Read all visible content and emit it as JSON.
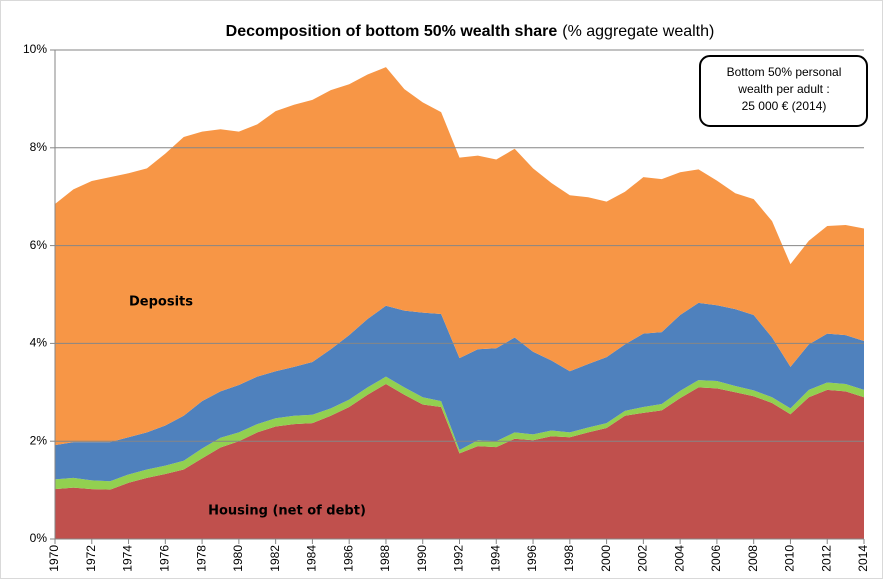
{
  "chart_data": {
    "type": "stacked-area",
    "title": "Decomposition of bottom 50% wealth share",
    "subtitle": "(% aggregate wealth)",
    "annotation": [
      "Bottom 50% personal",
      "wealth per adult :",
      "25 000 € (2014)"
    ],
    "x": [
      1970,
      1971,
      1972,
      1973,
      1974,
      1975,
      1976,
      1977,
      1978,
      1979,
      1980,
      1981,
      1982,
      1983,
      1984,
      1985,
      1986,
      1987,
      1988,
      1989,
      1990,
      1991,
      1992,
      1993,
      1994,
      1995,
      1996,
      1997,
      1998,
      1999,
      2000,
      2001,
      2002,
      2003,
      2004,
      2005,
      2006,
      2007,
      2008,
      2009,
      2010,
      2011,
      2012,
      2013,
      2014
    ],
    "xlim": [
      1970,
      2014
    ],
    "xticks": [
      1970,
      1972,
      1974,
      1976,
      1978,
      1980,
      1982,
      1984,
      1986,
      1988,
      1990,
      1992,
      1994,
      1996,
      1998,
      2000,
      2002,
      2004,
      2006,
      2008,
      2010,
      2012,
      2014
    ],
    "ylim": [
      0,
      10
    ],
    "yticks": [
      {
        "value": 0,
        "label": "0%"
      },
      {
        "value": 2,
        "label": "2%"
      },
      {
        "value": 4,
        "label": "4%"
      },
      {
        "value": 6,
        "label": "6%"
      },
      {
        "value": 8,
        "label": "8%"
      },
      {
        "value": 10,
        "label": "10%"
      }
    ],
    "grid": true,
    "series": [
      {
        "name": "Housing (net of debt)",
        "color": "#c0504d",
        "values": [
          1.02,
          1.05,
          1.02,
          1.01,
          1.15,
          1.25,
          1.33,
          1.42,
          1.65,
          1.87,
          2.0,
          2.18,
          2.3,
          2.35,
          2.37,
          2.52,
          2.7,
          2.95,
          3.17,
          2.95,
          2.75,
          2.7,
          1.75,
          1.9,
          1.88,
          2.05,
          2.02,
          2.1,
          2.08,
          2.18,
          2.27,
          2.52,
          2.58,
          2.63,
          2.88,
          3.1,
          3.08,
          3.0,
          2.92,
          2.78,
          2.55,
          2.9,
          3.05,
          3.02,
          2.9
        ]
      },
      {
        "color": "#92d050",
        "values": [
          0.2,
          0.2,
          0.18,
          0.17,
          0.17,
          0.17,
          0.17,
          0.18,
          0.2,
          0.2,
          0.18,
          0.17,
          0.17,
          0.17,
          0.17,
          0.15,
          0.15,
          0.15,
          0.15,
          0.15,
          0.15,
          0.12,
          0.07,
          0.12,
          0.12,
          0.13,
          0.12,
          0.12,
          0.1,
          0.1,
          0.1,
          0.1,
          0.12,
          0.13,
          0.15,
          0.15,
          0.15,
          0.13,
          0.12,
          0.12,
          0.12,
          0.15,
          0.15,
          0.15,
          0.15
        ]
      },
      {
        "color": "#4f81bd",
        "values": [
          0.7,
          0.73,
          0.78,
          0.8,
          0.76,
          0.76,
          0.82,
          0.92,
          0.97,
          0.95,
          0.97,
          0.97,
          0.96,
          1.0,
          1.08,
          1.21,
          1.32,
          1.4,
          1.45,
          1.57,
          1.73,
          1.78,
          1.88,
          1.86,
          1.9,
          1.94,
          1.69,
          1.43,
          1.25,
          1.3,
          1.35,
          1.36,
          1.5,
          1.47,
          1.55,
          1.58,
          1.55,
          1.57,
          1.54,
          1.22,
          0.85,
          0.93,
          1.0,
          1.0,
          1.0
        ]
      },
      {
        "name": "Deposits",
        "color": "#f79646",
        "values": [
          4.93,
          5.17,
          5.34,
          5.42,
          5.4,
          5.4,
          5.56,
          5.7,
          5.51,
          5.36,
          5.18,
          5.16,
          5.32,
          5.36,
          5.36,
          5.3,
          5.13,
          5.0,
          4.88,
          4.53,
          4.3,
          4.13,
          4.1,
          3.96,
          3.86,
          3.86,
          3.75,
          3.63,
          3.6,
          3.41,
          3.18,
          3.12,
          3.2,
          3.13,
          2.92,
          2.73,
          2.55,
          2.37,
          2.37,
          2.38,
          2.1,
          2.12,
          2.2,
          2.25,
          2.3
        ]
      }
    ]
  }
}
